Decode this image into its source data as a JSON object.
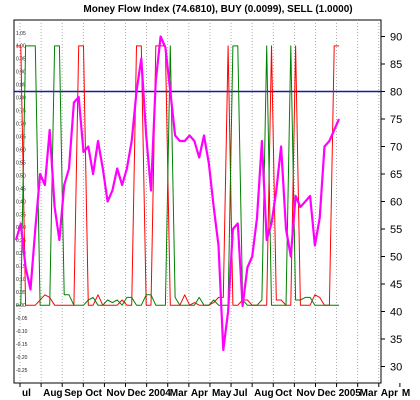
{
  "chart_data": {
    "type": "line",
    "title": "Money Flow Index (74.6810), BUY (0.0099), SELL (1.0000)",
    "xlabel": "",
    "ylabel": "",
    "x_tick_labels": [
      "ul",
      "Aug",
      "Sep",
      "Oct",
      "Nov",
      "Dec",
      "2004",
      "Mar",
      "Apr",
      "May",
      "Jul",
      "Aug",
      "Oct",
      "Nov",
      "Dec",
      "2005",
      "Mar",
      "Apr",
      "M"
    ],
    "right_axis": {
      "ylim": [
        27,
        93
      ],
      "ticks": [
        30,
        35,
        40,
        45,
        50,
        55,
        60,
        65,
        70,
        75,
        80,
        85,
        90
      ]
    },
    "left_axis": {
      "ylim": [
        -0.3,
        1.1
      ],
      "ticks": [
        -0.25,
        -0.2,
        -0.15,
        -0.1,
        -0.05,
        0.0,
        0.05,
        0.1,
        0.15,
        0.2,
        0.25,
        0.3,
        0.35,
        0.4,
        0.45,
        0.5,
        0.55,
        0.6,
        0.65,
        0.7,
        0.75,
        0.8,
        0.85,
        0.9,
        0.95,
        1.0,
        1.05
      ],
      "tick_labels": [
        "-0.25",
        "-0.20",
        "-0.15",
        "-0.10",
        "-0.05",
        "0.00",
        "0.05",
        "0.10",
        "0.15",
        "0.20",
        "0.25",
        "0.30",
        "0.35",
        "0.40",
        "0.45",
        "0.50",
        "0.55",
        "0.60",
        "0.65",
        "0.70",
        "0.75",
        "0.80",
        "0.85",
        "0.90",
        "0.95",
        "1.00",
        "1.05"
      ]
    },
    "reference_line": {
      "value": 80,
      "color": "#1a1aa0"
    },
    "grid": true,
    "x": [
      0,
      1,
      2,
      3,
      4,
      5,
      6,
      7,
      8,
      9,
      10,
      11,
      12,
      13,
      14,
      15,
      16,
      17,
      18,
      19,
      20,
      21,
      22,
      23,
      24,
      25,
      26,
      27,
      28,
      29,
      30,
      31,
      32,
      33,
      34,
      35,
      36,
      37,
      38,
      39,
      40,
      41,
      42,
      43,
      44,
      45,
      46,
      47,
      48,
      49,
      50,
      51,
      52,
      53,
      54,
      55,
      56,
      57,
      58,
      59,
      60,
      61,
      62,
      63,
      64,
      65,
      66,
      67
    ],
    "series": [
      {
        "color": "#ff00ff",
        "axis": "right",
        "values": [
          53,
          56,
          48,
          44,
          55,
          65,
          63,
          73,
          59,
          53,
          63,
          66,
          78,
          79,
          69,
          70,
          65,
          71,
          66,
          60,
          62,
          66,
          63,
          66,
          71,
          80,
          86,
          72,
          62,
          82,
          90,
          88,
          80,
          72,
          71,
          71,
          72,
          71,
          68,
          72,
          67,
          59,
          52,
          33,
          40,
          55,
          56,
          41,
          48,
          50,
          57,
          71,
          53,
          56,
          62,
          70,
          55,
          50,
          61,
          59,
          60,
          61,
          52,
          57,
          70,
          71,
          73,
          75
        ]
      },
      {
        "color": "#ff0000",
        "axis": "left",
        "values": [
          1,
          1,
          0,
          0,
          0,
          0.02,
          0.04,
          0.03,
          0,
          0,
          0,
          0,
          0,
          1,
          1,
          0,
          0,
          0.04,
          0,
          0,
          0,
          0,
          0.02,
          0,
          0,
          1,
          1,
          0,
          0,
          1,
          1,
          1,
          0,
          0,
          0,
          0.04,
          0,
          0.01,
          0,
          0,
          0,
          0.01,
          0.03,
          0.03,
          1,
          0,
          0,
          0.02,
          0.02,
          0,
          0,
          0,
          0,
          1,
          0.02,
          0.02,
          0,
          0,
          1,
          0,
          0,
          0,
          0.04,
          0.03,
          0,
          0,
          1,
          1
        ]
      },
      {
        "color": "#008000",
        "axis": "left",
        "values": [
          0,
          0,
          1,
          1,
          1,
          0,
          0,
          0,
          1,
          1,
          0.04,
          0.04,
          0,
          0,
          0,
          0.02,
          0.03,
          0,
          0,
          0.02,
          0.01,
          0.02,
          0,
          0.03,
          0.03,
          0,
          0,
          0.04,
          0.04,
          0,
          0,
          0,
          1,
          0.03,
          0,
          0,
          0,
          0,
          0.03,
          0,
          0,
          0.02,
          0,
          0,
          0,
          1,
          1,
          0.02,
          0,
          0,
          0,
          0.02,
          1,
          0,
          0,
          0,
          0,
          1,
          0.02,
          0.02,
          0.03,
          0.03,
          0,
          0,
          0,
          0,
          0,
          0
        ]
      }
    ]
  }
}
